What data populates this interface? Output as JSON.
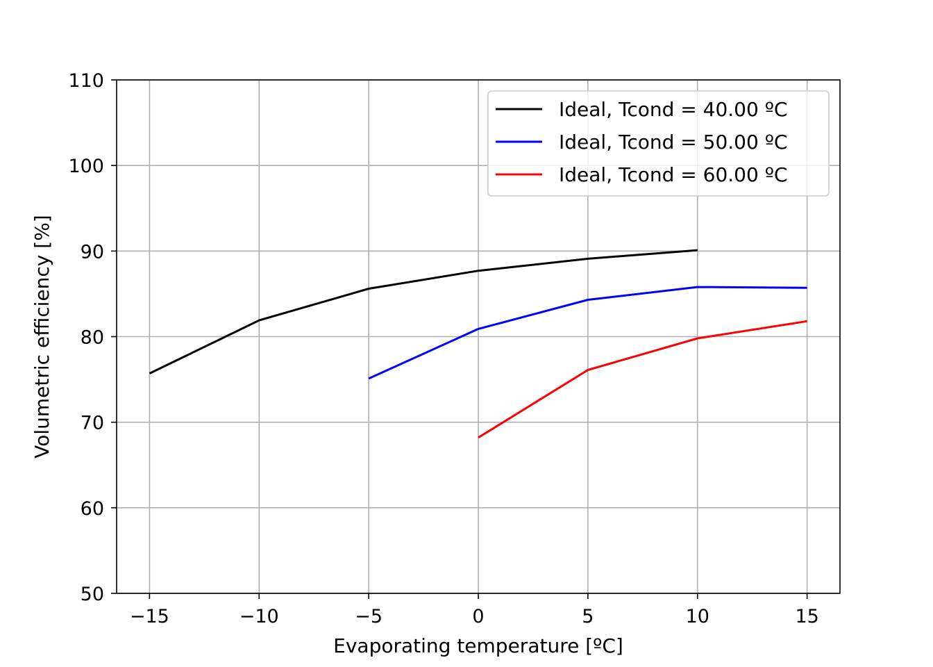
{
  "chart_data": {
    "type": "line",
    "title": "",
    "xlabel": "Evaporating temperature [ºC]",
    "ylabel": "Volumetric efficiency [%]",
    "xlim": [
      -16.5,
      16.5
    ],
    "ylim": [
      50,
      110
    ],
    "xticks": [
      -15,
      -10,
      -5,
      0,
      5,
      10,
      15
    ],
    "xtick_labels": [
      "−15",
      "−10",
      "−5",
      "0",
      "5",
      "10",
      "15"
    ],
    "yticks": [
      50,
      60,
      70,
      80,
      90,
      100,
      110
    ],
    "ytick_labels": [
      "50",
      "60",
      "70",
      "80",
      "90",
      "100",
      "110"
    ],
    "grid": true,
    "legend_position": "top-right",
    "series": [
      {
        "name": "Ideal, Tcond = 40.00 ºC",
        "color": "#000000",
        "x": [
          -15,
          -10,
          -5,
          0,
          5,
          10
        ],
        "y": [
          75.7,
          81.9,
          85.6,
          87.7,
          89.1,
          90.1
        ]
      },
      {
        "name": "Ideal, Tcond = 50.00 ºC",
        "color": "#0000ff",
        "x": [
          -5,
          0,
          5,
          10,
          15
        ],
        "y": [
          75.1,
          80.9,
          84.3,
          85.8,
          85.7
        ]
      },
      {
        "name": "Ideal, Tcond = 60.00 ºC",
        "color": "#ff0000",
        "x": [
          0,
          5,
          10,
          15
        ],
        "y": [
          68.2,
          76.1,
          79.8,
          81.8
        ]
      }
    ]
  }
}
